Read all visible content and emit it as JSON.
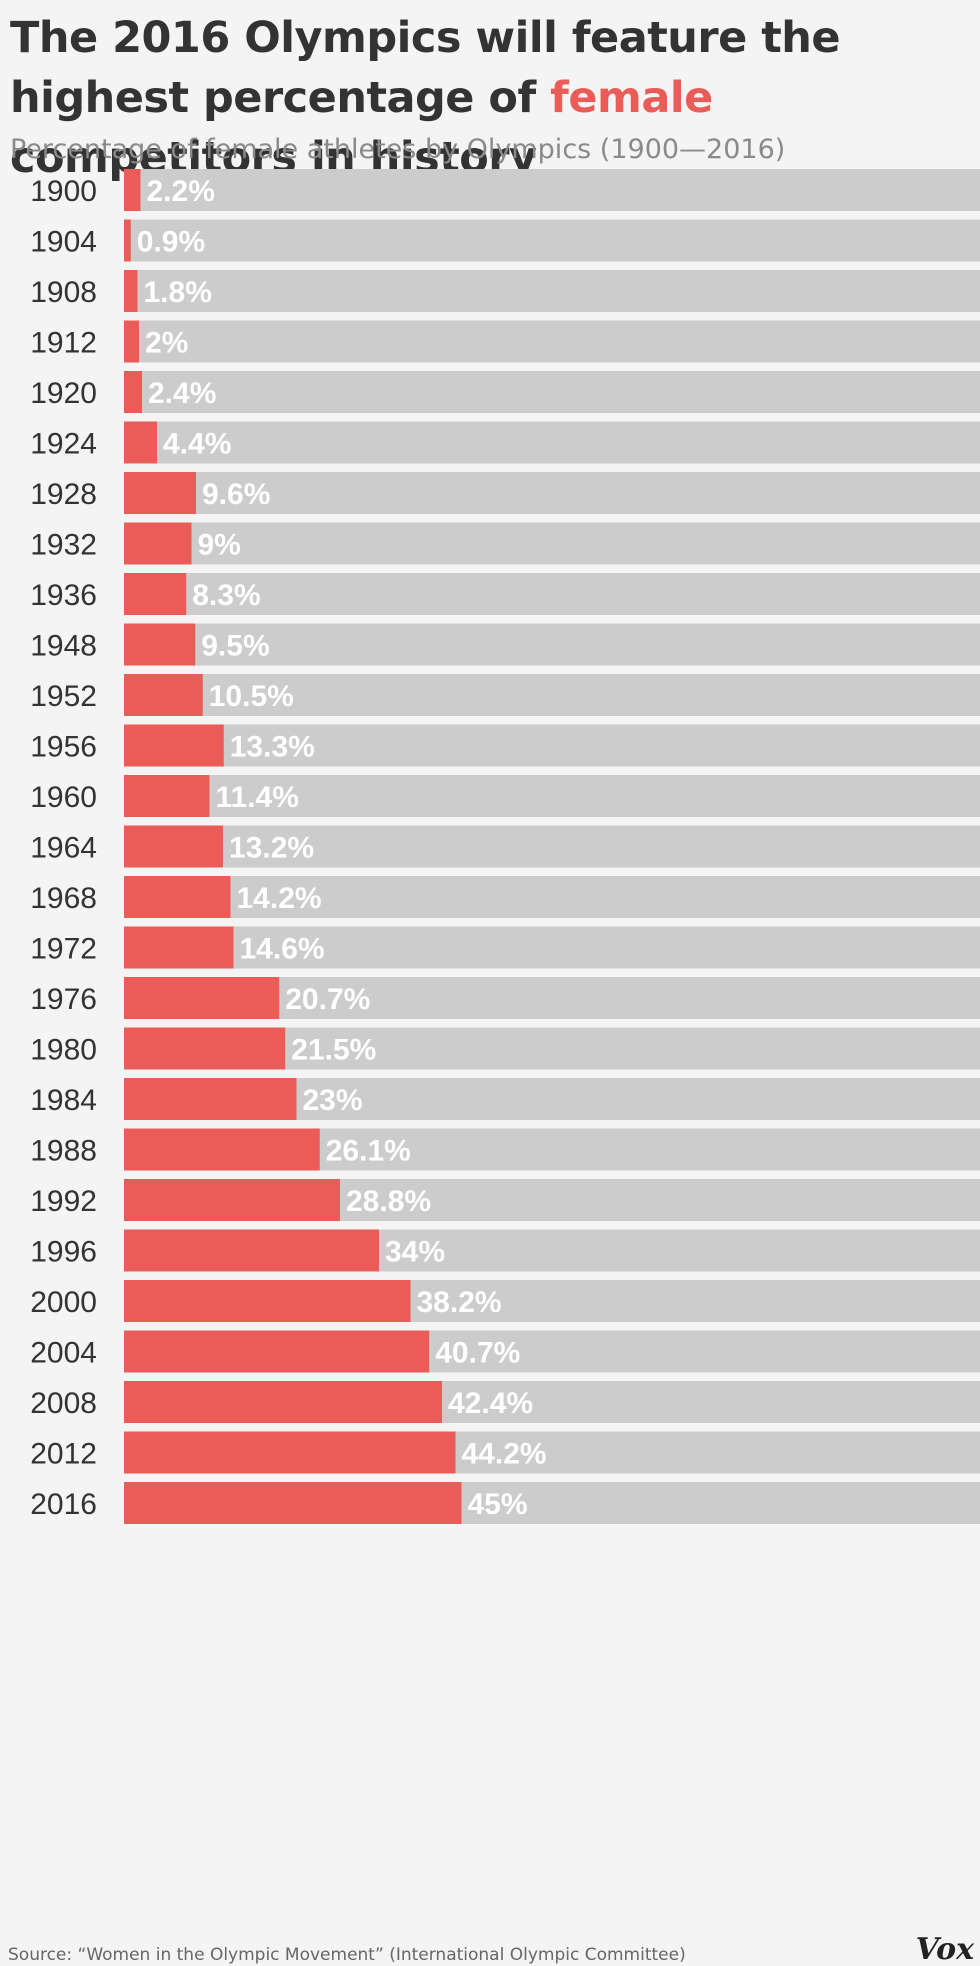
{
  "header": {
    "title_part1": "The 2016 Olympics will feature the highest percentage of ",
    "title_accent": "female",
    "title_part2": " competitors in history",
    "subtitle": "Percentage of female athletes by Olympics (1900—2016)"
  },
  "footer": {
    "source": "Source: “Women in the Olympic Movement” (International Olympic Committee)",
    "logo": "Vox"
  },
  "colors": {
    "bar": "#e95c57",
    "track": "#cccccc",
    "label": "#ffffff",
    "year": "#333333",
    "background": "#f3f4f3"
  },
  "chart_data": {
    "type": "bar",
    "orientation": "horizontal",
    "title": "The 2016 Olympics will feature the highest percentage of female competitors in history",
    "subtitle": "Percentage of female athletes by Olympics (1900—2016)",
    "xlabel": "",
    "ylabel": "",
    "xlim": [
      0,
      100
    ],
    "grid": false,
    "categories": [
      "1900",
      "1904",
      "1908",
      "1912",
      "1920",
      "1924",
      "1928",
      "1932",
      "1936",
      "1948",
      "1952",
      "1956",
      "1960",
      "1964",
      "1968",
      "1972",
      "1976",
      "1980",
      "1984",
      "1988",
      "1992",
      "1996",
      "2000",
      "2004",
      "2008",
      "2012",
      "2016"
    ],
    "values": [
      2.2,
      0.9,
      1.8,
      2,
      2.4,
      4.4,
      9.6,
      9,
      8.3,
      9.5,
      10.5,
      13.3,
      11.4,
      13.2,
      14.2,
      14.6,
      20.7,
      21.5,
      23,
      26.1,
      28.8,
      34,
      38.2,
      40.7,
      42.4,
      44.2,
      45
    ],
    "value_labels": [
      "2.2%",
      "0.9%",
      "1.8%",
      "2%",
      "2.4%",
      "4.4%",
      "9.6%",
      "9%",
      "8.3%",
      "9.5%",
      "10.5%",
      "13.3%",
      "11.4%",
      "13.2%",
      "14.2%",
      "14.6%",
      "20.7%",
      "21.5%",
      "23%",
      "26.1%",
      "28.8%",
      "34%",
      "38.2%",
      "40.7%",
      "42.4%",
      "44.2%",
      "45%"
    ]
  }
}
